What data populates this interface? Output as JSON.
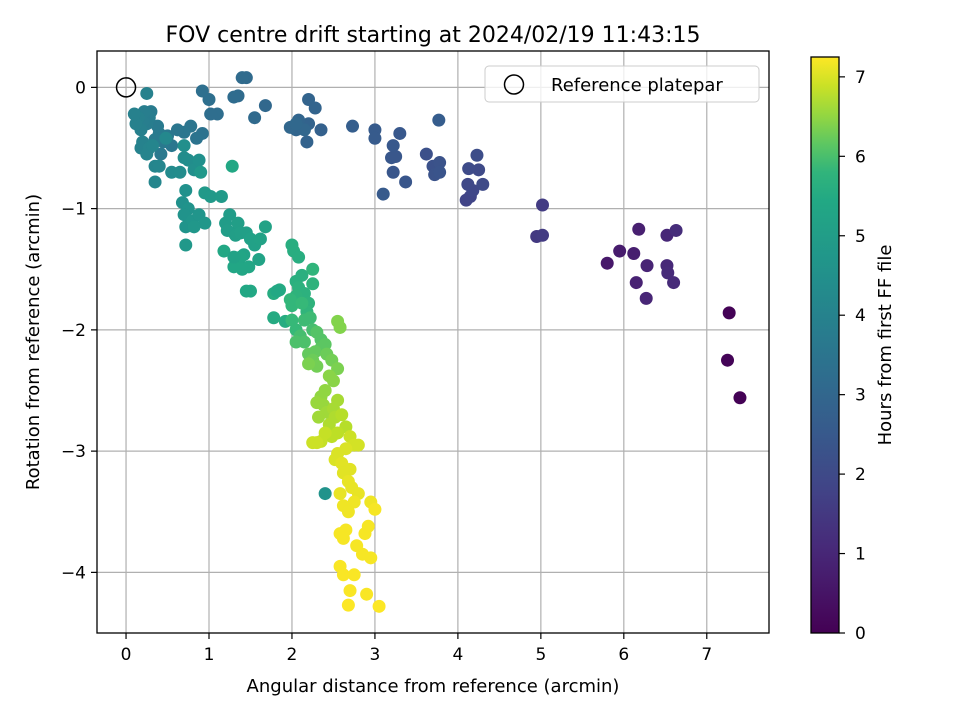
{
  "chart_data": {
    "type": "scatter",
    "title": "FOV centre drift starting at 2024/02/19 11:43:15",
    "xlabel": "Angular distance from reference (arcmin)",
    "ylabel": "Rotation from reference (arcmin)",
    "xlim": [
      -0.35,
      7.75
    ],
    "ylim": [
      -4.5,
      0.3
    ],
    "xticks": [
      0,
      1,
      2,
      3,
      4,
      5,
      6,
      7
    ],
    "xtick_labels": [
      "0",
      "1",
      "2",
      "3",
      "4",
      "5",
      "6",
      "7"
    ],
    "yticks": [
      0,
      -1,
      -2,
      -3,
      -4
    ],
    "ytick_labels": [
      "0",
      "−1",
      "−2",
      "−3",
      "−4"
    ],
    "grid": true,
    "legend": {
      "position": "top-right",
      "entries": [
        "Reference platepar"
      ]
    },
    "reference_point": {
      "x": 0,
      "y": 0,
      "label": "Reference platepar"
    },
    "colorbar": {
      "label": "Hours from first FF file",
      "colormap": "viridis",
      "range": [
        0,
        7.25
      ],
      "ticks": [
        0,
        1,
        2,
        3,
        4,
        5,
        6,
        7
      ],
      "tick_labels": [
        "0",
        "1",
        "2",
        "3",
        "4",
        "5",
        "6",
        "7"
      ]
    },
    "points": [
      [
        7.27,
        -1.86,
        0.05
      ],
      [
        7.25,
        -2.25,
        0.08
      ],
      [
        7.4,
        -2.56,
        0.02
      ],
      [
        5.8,
        -1.45,
        0.6
      ],
      [
        5.95,
        -1.35,
        0.7
      ],
      [
        6.12,
        -1.37,
        0.75
      ],
      [
        6.18,
        -1.17,
        0.8
      ],
      [
        6.15,
        -1.61,
        0.85
      ],
      [
        6.28,
        -1.47,
        0.9
      ],
      [
        6.27,
        -1.74,
        0.95
      ],
      [
        6.52,
        -1.22,
        1.0
      ],
      [
        6.52,
        -1.47,
        1.05
      ],
      [
        6.53,
        -1.53,
        1.1
      ],
      [
        6.6,
        -1.61,
        1.1
      ],
      [
        6.63,
        -1.18,
        1.15
      ],
      [
        4.95,
        -1.23,
        1.5
      ],
      [
        5.02,
        -1.22,
        1.55
      ],
      [
        5.02,
        -0.97,
        1.6
      ],
      [
        4.1,
        -0.93,
        1.8
      ],
      [
        4.15,
        -0.9,
        1.85
      ],
      [
        4.18,
        -0.85,
        1.9
      ],
      [
        4.12,
        -0.8,
        1.95
      ],
      [
        4.3,
        -0.8,
        2.0
      ],
      [
        4.25,
        -0.68,
        2.0
      ],
      [
        4.13,
        -0.67,
        2.05
      ],
      [
        4.23,
        -0.56,
        2.1
      ],
      [
        3.62,
        -0.55,
        2.2
      ],
      [
        3.7,
        -0.65,
        2.25
      ],
      [
        3.72,
        -0.72,
        2.3
      ],
      [
        3.78,
        -0.62,
        2.3
      ],
      [
        3.78,
        -0.7,
        2.35
      ],
      [
        3.37,
        -0.78,
        2.4
      ],
      [
        3.22,
        -0.7,
        2.4
      ],
      [
        3.2,
        -0.58,
        2.45
      ],
      [
        3.25,
        -0.57,
        2.45
      ],
      [
        3.3,
        -0.38,
        2.5
      ],
      [
        3.22,
        -0.48,
        2.5
      ],
      [
        3.1,
        -0.88,
        2.55
      ],
      [
        3.0,
        -0.35,
        2.6
      ],
      [
        3.0,
        -0.42,
        2.6
      ],
      [
        3.77,
        -0.27,
        2.65
      ],
      [
        2.73,
        -0.32,
        2.7
      ],
      [
        2.35,
        -0.35,
        2.8
      ],
      [
        2.2,
        -0.3,
        2.85
      ],
      [
        2.18,
        -0.45,
        2.85
      ],
      [
        2.2,
        -0.1,
        2.9
      ],
      [
        2.28,
        -0.17,
        2.9
      ],
      [
        2.08,
        -0.27,
        2.95
      ],
      [
        2.05,
        -0.35,
        2.95
      ],
      [
        1.98,
        -0.33,
        3.0
      ],
      [
        2.15,
        -0.35,
        3.0
      ],
      [
        2.05,
        -0.3,
        3.05
      ],
      [
        1.68,
        -0.15,
        3.05
      ],
      [
        1.55,
        -0.25,
        3.1
      ],
      [
        1.45,
        0.08,
        3.1
      ],
      [
        1.4,
        0.08,
        3.15
      ],
      [
        1.35,
        -0.07,
        3.15
      ],
      [
        1.3,
        -0.08,
        3.2
      ],
      [
        1.1,
        -0.22,
        3.25
      ],
      [
        1.02,
        -0.22,
        3.25
      ],
      [
        1.0,
        -0.1,
        3.3
      ],
      [
        0.92,
        -0.03,
        3.3
      ],
      [
        0.92,
        -0.38,
        3.4
      ],
      [
        0.85,
        -0.42,
        3.45
      ],
      [
        0.78,
        -0.32,
        3.5
      ],
      [
        0.7,
        -0.37,
        3.55
      ],
      [
        0.62,
        -0.35,
        3.55
      ],
      [
        0.55,
        -0.48,
        3.6
      ],
      [
        0.5,
        -0.4,
        3.6
      ],
      [
        0.45,
        -0.45,
        3.65
      ],
      [
        0.42,
        -0.55,
        3.65
      ],
      [
        0.4,
        -0.38,
        3.7
      ],
      [
        0.38,
        -0.32,
        3.7
      ],
      [
        0.35,
        -0.43,
        3.75
      ],
      [
        0.3,
        -0.2,
        3.75
      ],
      [
        0.28,
        -0.25,
        3.8
      ],
      [
        0.25,
        -0.3,
        3.8
      ],
      [
        0.22,
        -0.2,
        3.85
      ],
      [
        0.2,
        -0.28,
        3.85
      ],
      [
        0.18,
        -0.35,
        3.9
      ],
      [
        0.15,
        -0.25,
        3.9
      ],
      [
        0.12,
        -0.3,
        3.95
      ],
      [
        0.1,
        -0.22,
        3.95
      ],
      [
        0.25,
        -0.05,
        3.95
      ],
      [
        0.2,
        -0.45,
        4.0
      ],
      [
        0.18,
        -0.5,
        4.0
      ],
      [
        0.28,
        -0.5,
        4.05
      ],
      [
        0.25,
        -0.55,
        4.05
      ],
      [
        0.32,
        -0.48,
        4.1
      ],
      [
        0.35,
        -0.65,
        4.1
      ],
      [
        0.4,
        -0.65,
        4.15
      ],
      [
        0.35,
        -0.78,
        4.15
      ],
      [
        0.48,
        -0.42,
        4.2
      ],
      [
        0.55,
        -0.7,
        4.3
      ],
      [
        0.65,
        -0.7,
        4.35
      ],
      [
        0.7,
        -0.58,
        4.35
      ],
      [
        0.75,
        -0.6,
        4.4
      ],
      [
        0.7,
        -0.48,
        4.45
      ],
      [
        0.82,
        -0.68,
        4.45
      ],
      [
        0.88,
        -0.6,
        4.5
      ],
      [
        0.72,
        -0.85,
        4.55
      ],
      [
        0.68,
        -0.95,
        4.55
      ],
      [
        0.75,
        -1.0,
        4.6
      ],
      [
        0.7,
        -1.05,
        4.6
      ],
      [
        0.78,
        -1.12,
        4.65
      ],
      [
        0.72,
        -1.15,
        4.65
      ],
      [
        0.8,
        -1.1,
        4.7
      ],
      [
        0.88,
        -1.05,
        4.7
      ],
      [
        0.95,
        -1.12,
        4.75
      ],
      [
        0.82,
        -1.15,
        4.75
      ],
      [
        0.72,
        -1.3,
        4.8
      ],
      [
        0.9,
        -0.7,
        4.8
      ],
      [
        0.95,
        -0.87,
        4.85
      ],
      [
        1.02,
        -0.9,
        4.85
      ],
      [
        1.15,
        -0.9,
        4.9
      ],
      [
        1.2,
        -1.12,
        4.95
      ],
      [
        1.25,
        -1.05,
        4.95
      ],
      [
        1.3,
        -1.2,
        5.0
      ],
      [
        1.22,
        -1.18,
        5.0
      ],
      [
        1.35,
        -1.12,
        5.05
      ],
      [
        1.32,
        -1.22,
        5.05
      ],
      [
        1.38,
        -1.2,
        5.1
      ],
      [
        1.45,
        -1.2,
        5.1
      ],
      [
        1.5,
        -1.25,
        5.15
      ],
      [
        1.55,
        -1.3,
        5.15
      ],
      [
        1.62,
        -1.25,
        5.2
      ],
      [
        1.68,
        -1.15,
        5.2
      ],
      [
        1.6,
        -1.42,
        5.25
      ],
      [
        1.42,
        -1.38,
        5.25
      ],
      [
        1.35,
        -1.45,
        5.3
      ],
      [
        1.38,
        -1.4,
        5.3
      ],
      [
        1.4,
        -1.5,
        5.35
      ],
      [
        1.48,
        -1.48,
        5.35
      ],
      [
        1.3,
        -1.48,
        5.35
      ],
      [
        1.28,
        -0.65,
        5.4
      ],
      [
        1.18,
        -1.35,
        5.4
      ],
      [
        1.5,
        -1.68,
        5.45
      ],
      [
        1.85,
        -1.67,
        5.5
      ],
      [
        1.78,
        -1.9,
        5.5
      ],
      [
        1.78,
        -1.7,
        5.55
      ],
      [
        1.92,
        -1.93,
        5.55
      ],
      [
        2.0,
        -1.3,
        5.6
      ],
      [
        2.02,
        -1.35,
        5.6
      ],
      [
        2.05,
        -1.6,
        5.65
      ],
      [
        2.12,
        -1.55,
        5.65
      ],
      [
        2.08,
        -1.65,
        5.7
      ],
      [
        2.15,
        -1.7,
        5.7
      ],
      [
        2.05,
        -1.72,
        5.75
      ],
      [
        2.2,
        -1.78,
        5.75
      ],
      [
        2.25,
        -1.5,
        5.8
      ],
      [
        2.18,
        -1.85,
        5.8
      ],
      [
        2.0,
        -1.8,
        5.85
      ],
      [
        1.98,
        -1.75,
        5.85
      ],
      [
        2.0,
        -1.92,
        5.9
      ],
      [
        2.05,
        -2.0,
        5.9
      ],
      [
        2.15,
        -1.92,
        5.95
      ],
      [
        2.22,
        -1.9,
        5.95
      ],
      [
        2.25,
        -2.0,
        6.0
      ],
      [
        2.1,
        -2.05,
        6.0
      ],
      [
        2.15,
        -2.1,
        6.05
      ],
      [
        2.05,
        -2.1,
        6.05
      ],
      [
        2.3,
        -2.02,
        6.1
      ],
      [
        2.35,
        -2.08,
        6.1
      ],
      [
        2.4,
        -2.12,
        6.15
      ],
      [
        2.35,
        -2.15,
        6.15
      ],
      [
        2.28,
        -2.18,
        6.2
      ],
      [
        2.2,
        -2.2,
        6.2
      ],
      [
        2.25,
        -2.25,
        6.25
      ],
      [
        2.42,
        -2.2,
        6.25
      ],
      [
        2.48,
        -2.25,
        6.3
      ],
      [
        2.3,
        -2.3,
        6.3
      ],
      [
        2.2,
        -2.28,
        6.35
      ],
      [
        2.55,
        -2.32,
        6.35
      ],
      [
        2.55,
        -1.93,
        6.4
      ],
      [
        2.58,
        -1.98,
        6.4
      ],
      [
        2.45,
        -2.38,
        6.45
      ],
      [
        2.5,
        -2.42,
        6.45
      ],
      [
        2.4,
        -2.5,
        6.5
      ],
      [
        2.35,
        -2.55,
        6.5
      ],
      [
        2.3,
        -2.6,
        6.55
      ],
      [
        2.38,
        -2.62,
        6.55
      ],
      [
        2.42,
        -2.68,
        6.6
      ],
      [
        2.32,
        -2.72,
        6.6
      ],
      [
        2.55,
        -2.58,
        6.65
      ],
      [
        2.5,
        -2.65,
        6.65
      ],
      [
        2.45,
        -2.78,
        6.7
      ],
      [
        2.52,
        -2.72,
        6.7
      ],
      [
        2.6,
        -2.7,
        6.75
      ],
      [
        2.65,
        -2.8,
        6.75
      ],
      [
        2.55,
        -2.85,
        6.8
      ],
      [
        2.48,
        -2.88,
        6.8
      ],
      [
        2.4,
        -2.85,
        6.85
      ],
      [
        2.35,
        -2.92,
        6.85
      ],
      [
        2.25,
        -2.93,
        6.9
      ],
      [
        2.7,
        -2.88,
        6.9
      ],
      [
        2.75,
        -2.95,
        6.95
      ],
      [
        2.8,
        -2.95,
        6.95
      ],
      [
        2.65,
        -2.98,
        7.0
      ],
      [
        2.55,
        -3.02,
        7.0
      ],
      [
        2.52,
        -3.07,
        7.0
      ],
      [
        2.6,
        -3.1,
        7.05
      ],
      [
        2.7,
        -3.15,
        7.05
      ],
      [
        2.62,
        -3.18,
        7.05
      ],
      [
        2.68,
        -3.25,
        7.1
      ],
      [
        2.72,
        -3.3,
        7.1
      ],
      [
        2.58,
        -3.35,
        7.1
      ],
      [
        2.8,
        -3.35,
        7.1
      ],
      [
        2.75,
        -3.42,
        7.15
      ],
      [
        2.62,
        -3.45,
        7.15
      ],
      [
        2.68,
        -3.5,
        7.15
      ],
      [
        2.95,
        -3.42,
        7.15
      ],
      [
        2.58,
        -3.68,
        7.2
      ],
      [
        2.65,
        -3.65,
        7.2
      ],
      [
        2.62,
        -3.72,
        7.2
      ],
      [
        2.88,
        -3.68,
        7.2
      ],
      [
        2.92,
        -3.62,
        7.2
      ],
      [
        2.85,
        -3.85,
        7.2
      ],
      [
        2.95,
        -3.88,
        7.2
      ],
      [
        2.78,
        -3.78,
        7.2
      ],
      [
        3.0,
        -3.48,
        7.2
      ],
      [
        2.58,
        -3.95,
        7.22
      ],
      [
        2.62,
        -4.02,
        7.22
      ],
      [
        2.75,
        -4.02,
        7.22
      ],
      [
        2.7,
        -4.15,
        7.22
      ],
      [
        2.9,
        -4.18,
        7.22
      ],
      [
        2.68,
        -4.27,
        7.24
      ],
      [
        3.05,
        -4.28,
        7.24
      ],
      [
        1.45,
        -1.68,
        5.4
      ],
      [
        1.82,
        -1.68,
        5.45
      ],
      [
        2.08,
        -1.4,
        5.6
      ],
      [
        2.12,
        -1.78,
        5.9
      ],
      [
        2.25,
        -1.62,
        5.75
      ],
      [
        2.3,
        -2.93,
        6.9
      ],
      [
        2.4,
        -3.35,
        4.6
      ],
      [
        1.3,
        -1.4,
        5.2
      ]
    ]
  }
}
